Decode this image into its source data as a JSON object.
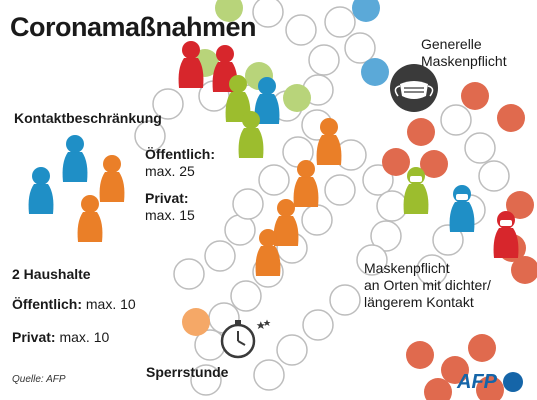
{
  "title": "Coronamaßnahmen",
  "kontakt": {
    "heading": "Kontaktbeschränkung",
    "public_label": "Öffentlich:",
    "public_value": "max. 25",
    "private_label": "Privat:",
    "private_value": "max. 15"
  },
  "haushalte": {
    "heading": "2 Haushalte",
    "public_label": "Öffentlich:",
    "public_value": "max. 10",
    "private_label": "Privat:",
    "private_value": "max. 10"
  },
  "masks_general": {
    "line1": "Generelle",
    "line2": "Maskenpflicht"
  },
  "masks_places": {
    "line1": "Maskenpflicht",
    "line2": "an Orten mit dichter/",
    "line3": "längerem Kontakt"
  },
  "curfew": "Sperrstunde",
  "source": "Quelle: AFP",
  "logo_text": "AFP",
  "colors": {
    "blue": "#1f8fc6",
    "orange": "#ea7f28",
    "green": "#9cbd2e",
    "red": "#d7262c",
    "salmon": "#e06a4e",
    "lightorange": "#f5a867",
    "lightgreen": "#b8d47a",
    "lightblue": "#5ba9d8",
    "grey": "#bdbdbd"
  }
}
